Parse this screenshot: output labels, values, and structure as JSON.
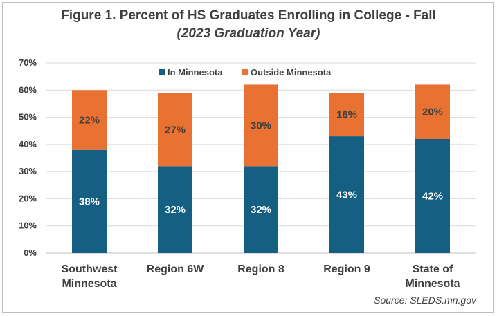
{
  "chart_data": {
    "type": "bar",
    "stacked": true,
    "title": "Figure 1. Percent of HS Graduates Enrolling in College - Fall",
    "subtitle": "(2023 Graduation Year)",
    "categories": [
      [
        "Southwest",
        "Minnesota"
      ],
      [
        "Region 6W"
      ],
      [
        "Region 8"
      ],
      [
        "Region 9"
      ],
      [
        "State of",
        "Minnesota"
      ]
    ],
    "series": [
      {
        "name": "In Minnesota",
        "color": "#156082",
        "label_color": "#ffffff",
        "values": [
          38,
          32,
          32,
          43,
          42
        ]
      },
      {
        "name": "Outside Minnesota",
        "color": "#E97132",
        "label_color": "#404040",
        "values": [
          22,
          27,
          30,
          16,
          20
        ]
      }
    ],
    "value_suffix": "%",
    "ylim": [
      0,
      70
    ],
    "yticks": [
      0,
      10,
      20,
      30,
      40,
      50,
      60,
      70
    ],
    "ytick_labels": [
      "0%",
      "10%",
      "20%",
      "30%",
      "40%",
      "50%",
      "60%",
      "70%"
    ],
    "grid": true,
    "legend": "top-center",
    "xlabel": "",
    "ylabel": ""
  },
  "source": "Source: SLEDS.mn.gov"
}
